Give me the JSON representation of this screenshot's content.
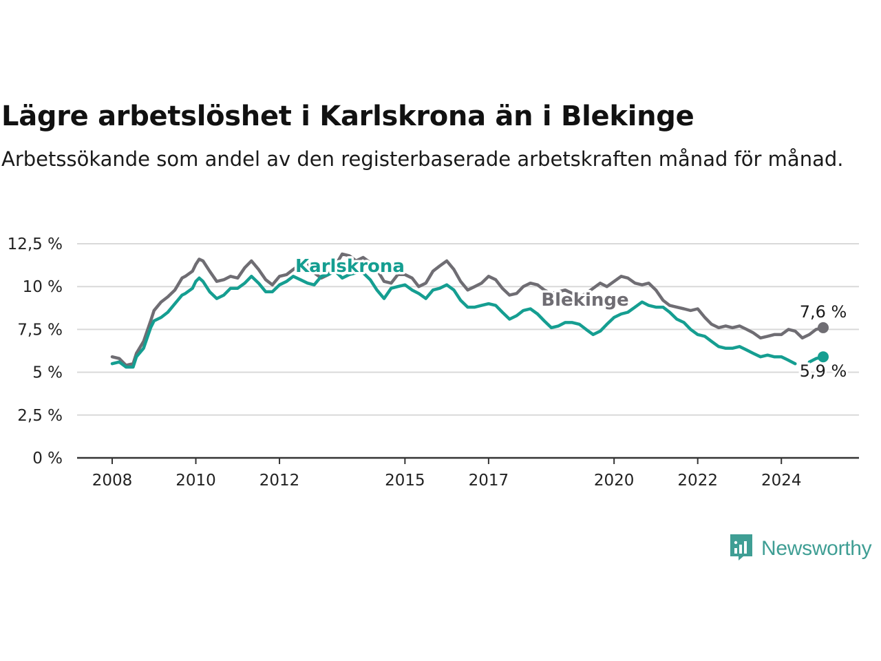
{
  "title": "Lägre arbetslöshet i Karlskrona än i Blekinge",
  "subtitle": "Arbetssökande som andel av den registerbaserade arbetskraften månad för månad.",
  "brand": {
    "name": "Newsworthy",
    "logo_icon": "bar-chart-speech-bubble-icon"
  },
  "colors": {
    "karlskrona": "#159e91",
    "blekinge": "#6f6d73",
    "grid": "#d9d9d9",
    "axis": "#333333"
  },
  "chart_data": {
    "type": "line",
    "x_unit": "year (monthly data)",
    "y_unit": "%",
    "ylim": [
      0,
      12.5
    ],
    "xlim": [
      2007.5,
      2025.75
    ],
    "y_ticks": [
      {
        "value": 0,
        "label": "0 %"
      },
      {
        "value": 2.5,
        "label": "2,5 %"
      },
      {
        "value": 5,
        "label": "5 %"
      },
      {
        "value": 7.5,
        "label": "7,5 %"
      },
      {
        "value": 10,
        "label": "10 %"
      },
      {
        "value": 12.5,
        "label": "12,5 %"
      }
    ],
    "x_ticks": [
      {
        "value": 2008,
        "label": "2008"
      },
      {
        "value": 2010,
        "label": "2010"
      },
      {
        "value": 2012,
        "label": "2012"
      },
      {
        "value": 2015,
        "label": "2015"
      },
      {
        "value": 2017,
        "label": "2017"
      },
      {
        "value": 2020,
        "label": "2020"
      },
      {
        "value": 2022,
        "label": "2022"
      },
      {
        "value": 2024,
        "label": "2024"
      }
    ],
    "grid": true,
    "legend": "labels placed on lines",
    "series": [
      {
        "name": "Blekinge",
        "color": "#6f6d73",
        "x": [
          2008.0,
          2008.17,
          2008.33,
          2008.5,
          2008.58,
          2008.75,
          2008.92,
          2009.0,
          2009.17,
          2009.33,
          2009.5,
          2009.67,
          2009.75,
          2009.92,
          2010.0,
          2010.08,
          2010.17,
          2010.33,
          2010.5,
          2010.67,
          2010.83,
          2011.0,
          2011.17,
          2011.33,
          2011.5,
          2011.67,
          2011.83,
          2012.0,
          2012.17,
          2012.33,
          2012.5,
          2012.67,
          2012.83,
          2013.0,
          2013.17,
          2013.33,
          2013.5,
          2013.67,
          2013.83,
          2014.0,
          2014.17,
          2014.33,
          2014.5,
          2014.67,
          2014.83,
          2015.0,
          2015.17,
          2015.33,
          2015.5,
          2015.67,
          2015.83,
          2016.0,
          2016.17,
          2016.33,
          2016.5,
          2016.67,
          2016.83,
          2017.0,
          2017.17,
          2017.33,
          2017.5,
          2017.67,
          2017.83,
          2018.0,
          2018.17,
          2018.33,
          2018.5,
          2018.67,
          2018.83,
          2019.0,
          2019.17,
          2019.33,
          2019.5,
          2019.67,
          2019.83,
          2020.0,
          2020.17,
          2020.33,
          2020.5,
          2020.67,
          2020.83,
          2021.0,
          2021.17,
          2021.33,
          2021.5,
          2021.67,
          2021.83,
          2022.0,
          2022.17,
          2022.33,
          2022.5,
          2022.67,
          2022.83,
          2023.0,
          2023.17,
          2023.33,
          2023.5,
          2023.67,
          2023.83,
          2024.0,
          2024.17,
          2024.33,
          2024.5,
          2024.67,
          2024.83,
          2025.0
        ],
        "values": [
          5.9,
          5.8,
          5.4,
          5.5,
          6.1,
          6.8,
          8.0,
          8.6,
          9.1,
          9.4,
          9.8,
          10.5,
          10.6,
          10.9,
          11.3,
          11.6,
          11.5,
          10.9,
          10.3,
          10.4,
          10.6,
          10.5,
          11.1,
          11.5,
          11.0,
          10.4,
          10.1,
          10.6,
          10.7,
          11.0,
          11.3,
          11.4,
          10.8,
          10.5,
          10.7,
          11.2,
          11.9,
          11.8,
          11.5,
          11.7,
          11.4,
          11.0,
          10.3,
          10.2,
          10.7,
          10.7,
          10.5,
          10.0,
          10.2,
          10.9,
          11.2,
          11.5,
          11.0,
          10.3,
          9.8,
          10.0,
          10.2,
          10.6,
          10.4,
          9.9,
          9.5,
          9.6,
          10.0,
          10.2,
          10.1,
          9.8,
          9.6,
          9.7,
          9.8,
          9.6,
          9.4,
          9.6,
          9.9,
          10.2,
          10.0,
          10.3,
          10.6,
          10.5,
          10.2,
          10.1,
          10.2,
          9.8,
          9.2,
          8.9,
          8.8,
          8.7,
          8.6,
          8.7,
          8.2,
          7.8,
          7.6,
          7.7,
          7.6,
          7.7,
          7.5,
          7.3,
          7.0,
          7.1,
          7.2,
          7.2,
          7.5,
          7.4,
          7.0,
          7.2,
          7.5,
          7.6
        ]
      },
      {
        "name": "Karlskrona",
        "color": "#159e91",
        "x": [
          2008.0,
          2008.17,
          2008.33,
          2008.5,
          2008.58,
          2008.75,
          2008.92,
          2009.0,
          2009.17,
          2009.33,
          2009.5,
          2009.67,
          2009.75,
          2009.92,
          2010.0,
          2010.08,
          2010.17,
          2010.33,
          2010.5,
          2010.67,
          2010.83,
          2011.0,
          2011.17,
          2011.33,
          2011.5,
          2011.67,
          2011.83,
          2012.0,
          2012.17,
          2012.33,
          2012.5,
          2012.67,
          2012.83,
          2013.0,
          2013.17,
          2013.33,
          2013.5,
          2013.67,
          2013.83,
          2014.0,
          2014.17,
          2014.33,
          2014.5,
          2014.67,
          2014.83,
          2015.0,
          2015.17,
          2015.33,
          2015.5,
          2015.67,
          2015.83,
          2016.0,
          2016.17,
          2016.33,
          2016.5,
          2016.67,
          2016.83,
          2017.0,
          2017.17,
          2017.33,
          2017.5,
          2017.67,
          2017.83,
          2018.0,
          2018.17,
          2018.33,
          2018.5,
          2018.67,
          2018.83,
          2019.0,
          2019.17,
          2019.33,
          2019.5,
          2019.67,
          2019.83,
          2020.0,
          2020.17,
          2020.33,
          2020.5,
          2020.67,
          2020.83,
          2021.0,
          2021.17,
          2021.33,
          2021.5,
          2021.67,
          2021.83,
          2022.0,
          2022.17,
          2022.33,
          2022.5,
          2022.67,
          2022.83,
          2023.0,
          2023.17,
          2023.33,
          2023.5,
          2023.67,
          2023.83,
          2024.0,
          2024.17,
          2024.33,
          2024.5,
          2024.67,
          2024.83,
          2025.0
        ],
        "values": [
          5.5,
          5.6,
          5.3,
          5.3,
          5.9,
          6.4,
          7.6,
          8.0,
          8.2,
          8.5,
          9.0,
          9.5,
          9.6,
          9.9,
          10.3,
          10.5,
          10.3,
          9.7,
          9.3,
          9.5,
          9.9,
          9.9,
          10.2,
          10.6,
          10.2,
          9.7,
          9.7,
          10.1,
          10.3,
          10.6,
          10.4,
          10.2,
          10.1,
          10.6,
          10.7,
          10.9,
          10.5,
          10.7,
          10.8,
          10.8,
          10.4,
          9.8,
          9.3,
          9.9,
          10.0,
          10.1,
          9.8,
          9.6,
          9.3,
          9.8,
          9.9,
          10.1,
          9.8,
          9.2,
          8.8,
          8.8,
          8.9,
          9.0,
          8.9,
          8.5,
          8.1,
          8.3,
          8.6,
          8.7,
          8.4,
          8.0,
          7.6,
          7.7,
          7.9,
          7.9,
          7.8,
          7.5,
          7.2,
          7.4,
          7.8,
          8.2,
          8.4,
          8.5,
          8.8,
          9.1,
          8.9,
          8.8,
          8.8,
          8.5,
          8.1,
          7.9,
          7.5,
          7.2,
          7.1,
          6.8,
          6.5,
          6.4,
          6.4,
          6.5,
          6.3,
          6.1,
          5.9,
          6.0,
          5.9,
          5.9,
          5.7,
          5.5,
          null,
          5.6,
          5.8,
          5.9
        ]
      }
    ],
    "annotations": [
      {
        "series": "Blekinge",
        "text": "Blekinge"
      },
      {
        "series": "Karlskrona",
        "text": "Karlskrona"
      },
      {
        "series": "Blekinge",
        "x": 2025.0,
        "text": "7,6 %"
      },
      {
        "series": "Karlskrona",
        "x": 2025.0,
        "text": "5,9 %"
      }
    ]
  }
}
